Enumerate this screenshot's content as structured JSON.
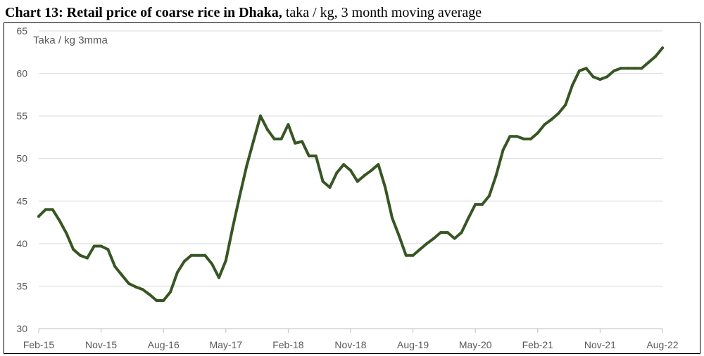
{
  "title": {
    "bold": "Chart 13: Retail price of coarse rice in Dhaka,",
    "normal": " taka / kg, 3 month moving average"
  },
  "chart_data": {
    "type": "line",
    "unit_label": "Taka / kg 3mma",
    "xlabel": "",
    "ylabel": "",
    "ylim": [
      30,
      65
    ],
    "yticks": [
      30,
      35,
      40,
      45,
      50,
      55,
      60,
      65
    ],
    "xticks": [
      "Feb-15",
      "Nov-15",
      "Aug-16",
      "May-17",
      "Feb-18",
      "Nov-18",
      "Aug-19",
      "May-20",
      "Feb-21",
      "Nov-21",
      "Aug-22"
    ],
    "grid": true,
    "series_color": "#375623",
    "series": [
      {
        "values": [
          43.2,
          44.0,
          44.0,
          42.7,
          41.2,
          39.3,
          38.6,
          38.3,
          39.7,
          39.7,
          39.3,
          37.3,
          36.3,
          35.3,
          34.9,
          34.6,
          34.0,
          33.3,
          33.3,
          34.3,
          36.6,
          37.9,
          38.6,
          38.6,
          38.6,
          37.6,
          36.0,
          38.0,
          41.9,
          45.6,
          49.1,
          52.1,
          55.0,
          53.4,
          52.3,
          52.3,
          54.0,
          51.8,
          52.0,
          50.3,
          50.3,
          47.3,
          46.6,
          48.3,
          49.3,
          48.6,
          47.3,
          48.0,
          48.6,
          49.3,
          46.6,
          43.0,
          40.9,
          38.6,
          38.6,
          39.3,
          40.0,
          40.6,
          41.3,
          41.3,
          40.6,
          41.3,
          43.0,
          44.6,
          44.6,
          45.6,
          48.0,
          51.0,
          52.6,
          52.6,
          52.3,
          52.3,
          53.0,
          54.0,
          54.6,
          55.3,
          56.3,
          58.6,
          60.3,
          60.6,
          59.6,
          59.3,
          59.6,
          60.3,
          60.6,
          60.6,
          60.6,
          60.6,
          61.3,
          62.0,
          63.0
        ]
      }
    ]
  }
}
